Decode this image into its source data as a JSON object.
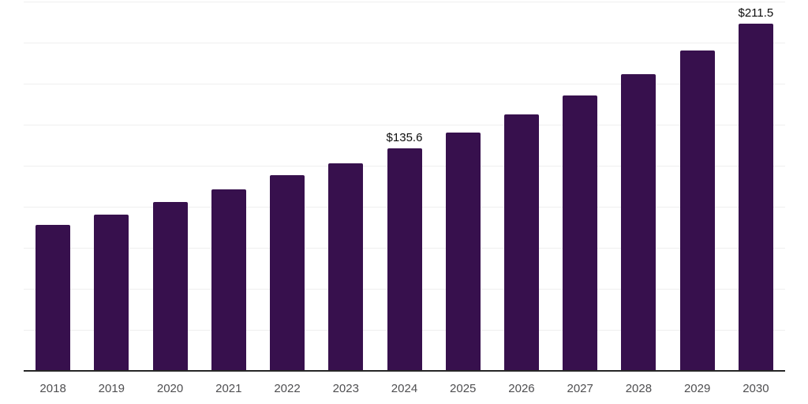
{
  "chart_data": {
    "type": "bar",
    "title": "",
    "xlabel": "",
    "ylabel": "",
    "categories": [
      "2018",
      "2019",
      "2020",
      "2021",
      "2022",
      "2023",
      "2024",
      "2025",
      "2026",
      "2027",
      "2028",
      "2029",
      "2030"
    ],
    "values": [
      88.8,
      95.3,
      102.8,
      110.4,
      119.2,
      126.6,
      135.6,
      145.0,
      156.1,
      167.8,
      180.9,
      195.3,
      211.5
    ],
    "annotations": [
      {
        "category": "2024",
        "text": "$135.6"
      },
      {
        "category": "2030",
        "text": "$211.5"
      }
    ],
    "ylim": [
      0,
      225
    ],
    "grid": true,
    "grid_step": 25,
    "legend": false,
    "colors": {
      "bar": "#37104d",
      "axis_line": "#262626",
      "gridline": "#efefef",
      "tick_label": "#4f4f51",
      "annotation": "#0d0d0d",
      "background": "#ffffff"
    }
  }
}
